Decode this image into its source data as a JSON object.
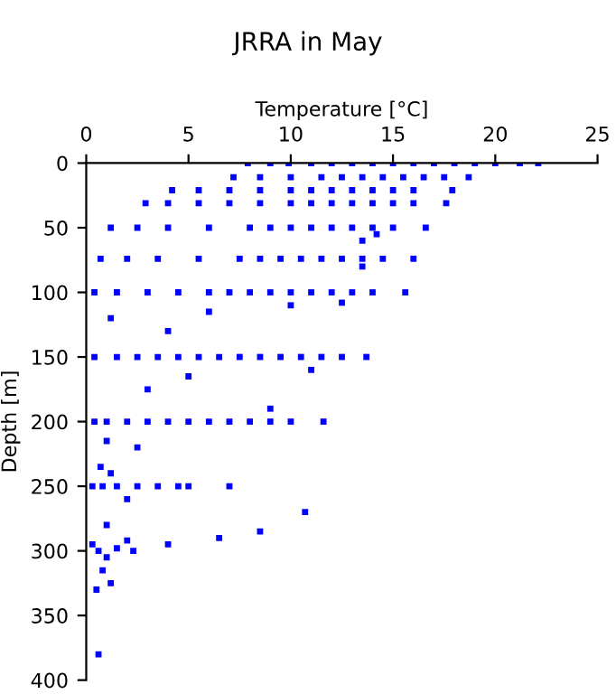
{
  "chart_data": {
    "type": "scatter",
    "title": "JRRA in May",
    "xlabel": "Temperature [°C]",
    "ylabel": "Depth [m]",
    "xlim": [
      0,
      25
    ],
    "xticks": [
      0,
      5,
      10,
      15,
      20,
      25
    ],
    "ylim": [
      400,
      0
    ],
    "yticks": [
      0,
      50,
      100,
      150,
      200,
      250,
      300,
      350,
      400
    ],
    "grid": false,
    "marker": "square",
    "series": [
      {
        "color": "#0000ff",
        "x": [
          7.9,
          9.0,
          9.9,
          11.0,
          12.0,
          13.0,
          14.0,
          15.0,
          16.0,
          17.0,
          18.0,
          19.0,
          20.0,
          21.2,
          22.1,
          7.2,
          8.5,
          10.0,
          11.5,
          12.5,
          13.5,
          14.5,
          15.5,
          16.5,
          17.5,
          18.7,
          4.2,
          5.5,
          7.0,
          8.5,
          10.0,
          11.0,
          12.0,
          13.0,
          14.0,
          15.0,
          16.0,
          17.9,
          2.9,
          4.0,
          5.5,
          7.0,
          8.5,
          10.0,
          11.0,
          12.0,
          13.0,
          14.0,
          15.0,
          16.0,
          17.6,
          1.2,
          2.5,
          4.0,
          6.0,
          8.0,
          9.0,
          10.0,
          11.0,
          12.0,
          13.0,
          14.0,
          15.0,
          16.6,
          13.5,
          14.2,
          0.7,
          2.0,
          3.5,
          5.5,
          7.5,
          8.5,
          9.5,
          10.5,
          11.5,
          12.5,
          13.5,
          14.5,
          16.0,
          13.5,
          0.4,
          1.5,
          3.0,
          4.5,
          6.0,
          7.0,
          8.0,
          9.0,
          10.0,
          11.0,
          12.0,
          13.0,
          14.0,
          15.6,
          10.0,
          12.5,
          1.2,
          6.0,
          4.0,
          0.4,
          1.5,
          2.5,
          3.5,
          4.5,
          5.5,
          6.5,
          7.5,
          8.5,
          9.5,
          10.5,
          11.5,
          12.5,
          13.7,
          11.0,
          5.0,
          3.0,
          0.4,
          1.0,
          2.0,
          3.0,
          4.0,
          5.0,
          6.0,
          7.0,
          8.0,
          9.0,
          10.0,
          11.6,
          1.0,
          2.5,
          9.0,
          0.3,
          0.8,
          1.5,
          2.5,
          3.5,
          4.5,
          5.0,
          7.0,
          0.7,
          1.2,
          2.0,
          0.3,
          0.6,
          1.0,
          1.5,
          2.0,
          2.3,
          0.8,
          1.2,
          4.0,
          6.5,
          8.5,
          0.5,
          1.0,
          10.7,
          0.6
        ],
        "values": [
          0,
          0,
          0,
          0,
          0,
          0,
          0,
          0,
          0,
          0,
          0,
          0,
          0,
          0,
          0,
          11,
          11,
          11,
          11,
          11,
          11,
          11,
          11,
          11,
          11,
          11,
          21,
          21,
          21,
          21,
          21,
          21,
          21,
          21,
          21,
          21,
          21,
          21,
          31,
          31,
          31,
          31,
          31,
          31,
          31,
          31,
          31,
          31,
          31,
          31,
          31,
          50,
          50,
          50,
          50,
          50,
          50,
          50,
          50,
          50,
          50,
          50,
          50,
          50,
          60,
          55,
          74,
          74,
          74,
          74,
          74,
          74,
          74,
          74,
          74,
          74,
          74,
          74,
          74,
          80,
          100,
          100,
          100,
          100,
          100,
          100,
          100,
          100,
          100,
          100,
          100,
          100,
          100,
          100,
          110,
          108,
          120,
          115,
          130,
          150,
          150,
          150,
          150,
          150,
          150,
          150,
          150,
          150,
          150,
          150,
          150,
          150,
          150,
          160,
          165,
          175,
          200,
          200,
          200,
          200,
          200,
          200,
          200,
          200,
          200,
          200,
          200,
          200,
          215,
          220,
          190,
          250,
          250,
          250,
          250,
          250,
          250,
          250,
          250,
          235,
          240,
          260,
          295,
          300,
          305,
          298,
          292,
          300,
          315,
          325,
          295,
          290,
          285,
          330,
          280,
          270,
          380
        ]
      }
    ]
  }
}
